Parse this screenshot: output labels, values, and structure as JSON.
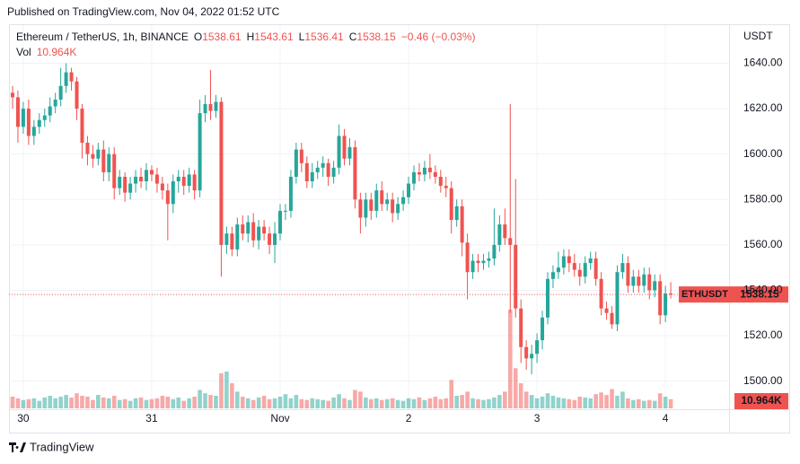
{
  "header": {
    "published": "Published on TradingView.com, Nov 04, 2022 01:52 UTC",
    "brand": "TradingView"
  },
  "chart_data": {
    "type": "candlestick",
    "legend": {
      "symbol": "Ethereum / TetherUS, 1h, BINANCE",
      "keys": [
        "O",
        "H",
        "L",
        "C"
      ],
      "change": "−0.46 (−0.03%)"
    },
    "axis_label": "USDT",
    "ticker": "ETHUSDT",
    "up_color": "#26a69a",
    "down_color": "#ef5350",
    "grid": true,
    "ylim": [
      1488,
      1656
    ],
    "yticks": [
      {
        "value": 1500,
        "label": "1500.00"
      },
      {
        "value": 1520,
        "label": "1520.00"
      },
      {
        "value": 1540,
        "label": "1540.00"
      },
      {
        "value": 1560,
        "label": "1560.00"
      },
      {
        "value": 1580,
        "label": "1580.00"
      },
      {
        "value": 1600,
        "label": "1600.00"
      },
      {
        "value": 1620,
        "label": "1620.00"
      },
      {
        "value": 1640,
        "label": "1640.00"
      }
    ],
    "xticks": [
      {
        "value": 2,
        "label": "30"
      },
      {
        "value": 26,
        "label": "31"
      },
      {
        "value": 50,
        "label": "Nov"
      },
      {
        "value": 74,
        "label": "2"
      },
      {
        "value": 98,
        "label": "3"
      },
      {
        "value": 122,
        "label": "4"
      }
    ],
    "open": [
      1627,
      1625,
      1612,
      1620,
      1608,
      1612,
      1615,
      1617,
      1621,
      1624,
      1630,
      1636,
      1632,
      1620,
      1605,
      1600,
      1598,
      1602,
      1592,
      1600,
      1585,
      1590,
      1583,
      1587,
      1590,
      1588,
      1593,
      1591,
      1587,
      1584,
      1578,
      1588,
      1590,
      1586,
      1591,
      1584,
      1618,
      1622,
      1619,
      1623,
      1560,
      1565,
      1558,
      1569,
      1565,
      1570,
      1562,
      1568,
      1565,
      1560,
      1565,
      1575,
      1575,
      1590,
      1602,
      1596,
      1588,
      1592,
      1594,
      1596,
      1590,
      1594,
      1608,
      1598,
      1603,
      1580,
      1572,
      1580,
      1575,
      1584,
      1578,
      1580,
      1574,
      1578,
      1581,
      1587,
      1592,
      1591,
      1594,
      1592,
      1590,
      1586,
      1585,
      1571,
      1577,
      1561,
      1548,
      1553,
      1552,
      1553,
      1554,
      1560,
      1569,
      1563,
      1560,
      1532,
      1515,
      1510,
      1512,
      1518,
      1528,
      1545,
      1548,
      1550,
      1555,
      1552,
      1549,
      1546,
      1552,
      1554,
      1545,
      1532,
      1530,
      1525,
      1548,
      1552,
      1542,
      1546,
      1542,
      1547,
      1540,
      1544,
      1529,
      1538.61
    ],
    "high": [
      1630,
      1628,
      1623,
      1624,
      1615,
      1618,
      1620,
      1625,
      1627,
      1638,
      1640,
      1638,
      1634,
      1622,
      1608,
      1604,
      1605,
      1606,
      1603,
      1603,
      1593,
      1592,
      1590,
      1593,
      1594,
      1596,
      1595,
      1594,
      1590,
      1587,
      1591,
      1593,
      1593,
      1594,
      1593,
      1624,
      1626,
      1637,
      1626,
      1625,
      1568,
      1568,
      1572,
      1573,
      1573,
      1574,
      1571,
      1571,
      1568,
      1570,
      1578,
      1578,
      1593,
      1605,
      1605,
      1599,
      1596,
      1597,
      1599,
      1598,
      1597,
      1613,
      1611,
      1607,
      1606,
      1583,
      1583,
      1583,
      1587,
      1588,
      1583,
      1583,
      1581,
      1584,
      1590,
      1595,
      1596,
      1597,
      1600,
      1595,
      1593,
      1590,
      1588,
      1580,
      1580,
      1565,
      1556,
      1556,
      1556,
      1557,
      1576,
      1573,
      1576,
      1622,
      1589,
      1536,
      1518,
      1516,
      1521,
      1531,
      1548,
      1551,
      1557,
      1558,
      1558,
      1556,
      1552,
      1555,
      1557,
      1557,
      1548,
      1535,
      1533,
      1551,
      1556,
      1555,
      1549,
      1549,
      1550,
      1550,
      1547,
      1547,
      1542,
      1543.61
    ],
    "low": [
      1620,
      1605,
      1609,
      1604,
      1604,
      1609,
      1612,
      1614,
      1618,
      1621,
      1627,
      1628,
      1615,
      1598,
      1595,
      1594,
      1595,
      1588,
      1588,
      1580,
      1582,
      1579,
      1580,
      1583,
      1585,
      1584,
      1588,
      1583,
      1580,
      1562,
      1574,
      1583,
      1582,
      1583,
      1580,
      1581,
      1614,
      1615,
      1616,
      1546,
      1556,
      1555,
      1555,
      1562,
      1561,
      1559,
      1558,
      1562,
      1556,
      1552,
      1562,
      1571,
      1572,
      1587,
      1592,
      1585,
      1585,
      1589,
      1590,
      1586,
      1587,
      1591,
      1595,
      1595,
      1576,
      1565,
      1568,
      1571,
      1572,
      1575,
      1575,
      1570,
      1571,
      1575,
      1578,
      1584,
      1588,
      1588,
      1589,
      1587,
      1583,
      1581,
      1565,
      1568,
      1555,
      1536,
      1545,
      1548,
      1549,
      1550,
      1551,
      1557,
      1560,
      1530,
      1528,
      1508,
      1505,
      1503,
      1508,
      1514,
      1525,
      1541,
      1545,
      1547,
      1548,
      1546,
      1542,
      1543,
      1549,
      1542,
      1529,
      1527,
      1523,
      1522,
      1545,
      1539,
      1539,
      1539,
      1539,
      1536,
      1537,
      1525,
      1526,
      1536.41
    ],
    "close": [
      1625,
      1612,
      1620,
      1608,
      1612,
      1615,
      1617,
      1621,
      1624,
      1630,
      1636,
      1632,
      1620,
      1605,
      1600,
      1598,
      1602,
      1592,
      1600,
      1585,
      1590,
      1583,
      1587,
      1590,
      1588,
      1593,
      1591,
      1587,
      1584,
      1578,
      1588,
      1590,
      1586,
      1591,
      1584,
      1618,
      1622,
      1619,
      1623,
      1560,
      1565,
      1558,
      1569,
      1565,
      1570,
      1562,
      1568,
      1565,
      1560,
      1565,
      1575,
      1575,
      1590,
      1602,
      1596,
      1588,
      1592,
      1594,
      1596,
      1590,
      1594,
      1608,
      1598,
      1603,
      1580,
      1572,
      1580,
      1575,
      1584,
      1578,
      1580,
      1574,
      1578,
      1581,
      1587,
      1592,
      1591,
      1594,
      1592,
      1590,
      1586,
      1585,
      1571,
      1577,
      1561,
      1548,
      1553,
      1552,
      1553,
      1554,
      1560,
      1569,
      1563,
      1560,
      1532,
      1515,
      1510,
      1512,
      1518,
      1528,
      1545,
      1548,
      1550,
      1555,
      1552,
      1549,
      1546,
      1552,
      1554,
      1545,
      1532,
      1530,
      1525,
      1548,
      1552,
      1542,
      1546,
      1542,
      1547,
      1540,
      1544,
      1529,
      1538.61,
      1538.15
    ],
    "volume": {
      "name": "Vol",
      "last_label": "10.964K",
      "values": [
        14000,
        12000,
        10000,
        11000,
        12000,
        9000,
        13000,
        15000,
        12000,
        14000,
        16000,
        13000,
        18000,
        15000,
        14000,
        10000,
        16000,
        13000,
        12000,
        15000,
        10000,
        11000,
        9000,
        12000,
        13000,
        10000,
        11000,
        12000,
        15000,
        14000,
        11000,
        13000,
        9000,
        12000,
        14000,
        22000,
        18000,
        16000,
        15000,
        42000,
        44000,
        30000,
        20000,
        14000,
        12000,
        10000,
        13000,
        15000,
        11000,
        12000,
        14000,
        17000,
        12000,
        16000,
        11000,
        10000,
        12000,
        11000,
        10000,
        9000,
        13000,
        17000,
        12000,
        10000,
        22000,
        20000,
        13000,
        11000,
        12000,
        10000,
        11000,
        12000,
        10000,
        9000,
        12000,
        11000,
        13000,
        10000,
        12000,
        14000,
        11000,
        12000,
        34000,
        15000,
        16000,
        20000,
        12000,
        11000,
        10000,
        11000,
        13000,
        16000,
        20000,
        118000,
        48000,
        30000,
        20000,
        16000,
        12000,
        14000,
        18000,
        15000,
        13000,
        12000,
        11000,
        10000,
        14000,
        13000,
        12000,
        17000,
        19000,
        16000,
        23000,
        15000,
        20000,
        12000,
        10000,
        11000,
        9000,
        10000,
        9000,
        18000,
        14000,
        10964
      ]
    }
  }
}
